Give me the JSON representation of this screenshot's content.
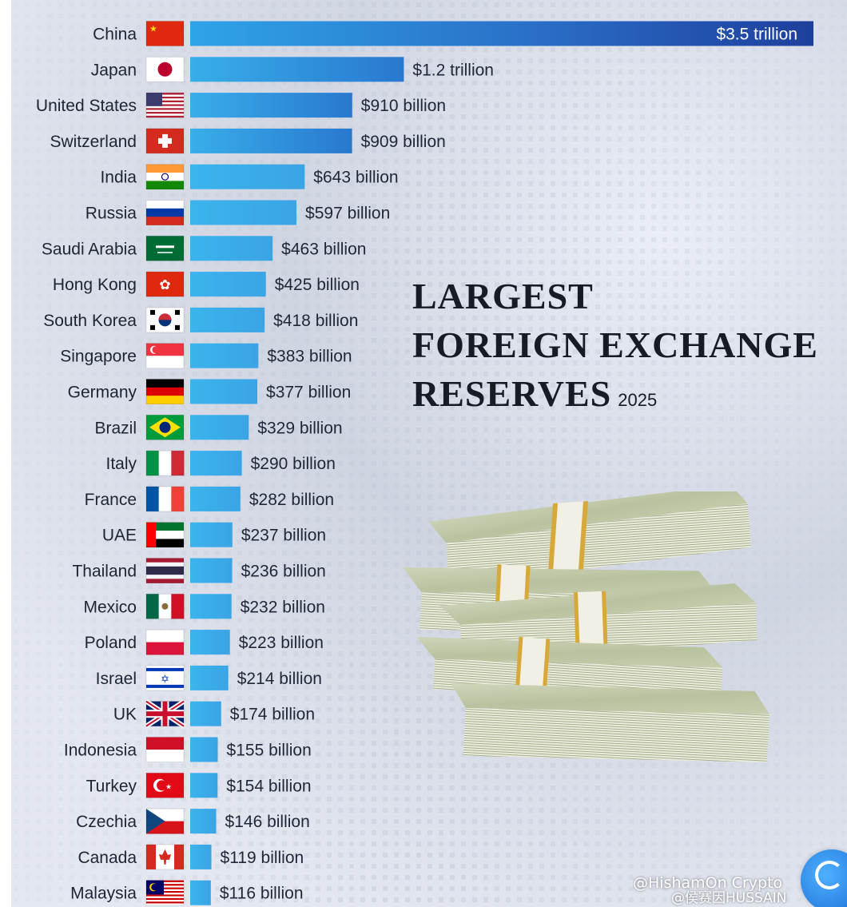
{
  "title": {
    "line1": "LARGEST",
    "line2": "FOREIGN EXCHANGE",
    "line3": "RESERVES",
    "year": "2025"
  },
  "watermark": {
    "line1": "@HishamOn Crypto",
    "line2": "@侯赛因HUSSAIN"
  },
  "colors": {
    "bar_top": "#1e4fae",
    "bar_mid": "#2a8fe0",
    "bar_light": "#3ab2ea",
    "text": "#1d2433"
  },
  "chart_data": {
    "type": "bar",
    "orientation": "horizontal",
    "title": "LARGEST FOREIGN EXCHANGE RESERVES 2025",
    "unit": "billion USD",
    "categories": [
      "China",
      "Japan",
      "United States",
      "Switzerland",
      "India",
      "Russia",
      "Saudi Arabia",
      "Hong Kong",
      "South Korea",
      "Singapore",
      "Germany",
      "Brazil",
      "Italy",
      "France",
      "UAE",
      "Thailand",
      "Mexico",
      "Poland",
      "Israel",
      "UK",
      "Indonesia",
      "Turkey",
      "Czechia",
      "Canada",
      "Malaysia"
    ],
    "values": [
      3500,
      1200,
      910,
      909,
      643,
      597,
      463,
      425,
      418,
      383,
      377,
      329,
      290,
      282,
      237,
      236,
      232,
      223,
      214,
      174,
      155,
      154,
      146,
      119,
      116
    ],
    "value_labels": [
      "$3.5 trillion",
      "$1.2 trillion",
      "$910 billion",
      "$909 billion",
      "$643 billion",
      "$597 billion",
      "$463 billion",
      "$425 billion",
      "$418 billion",
      "$383 billion",
      "$377 billion",
      "$329 billion",
      "$290 billion",
      "$282 billion",
      "$237 billion",
      "$236 billion",
      "$232 billion",
      "$223 billion",
      "$214 billion",
      "$174 billion",
      "$155 billion",
      "$154 billion",
      "$146 billion",
      "$119 billion",
      "$116 billion"
    ],
    "flags": [
      "flag-china-icon",
      "flag-japan-icon",
      "flag-united-states-icon",
      "flag-switzerland-icon",
      "flag-india-icon",
      "flag-russia-icon",
      "flag-saudi-arabia-icon",
      "flag-hong-kong-icon",
      "flag-south-korea-icon",
      "flag-singapore-icon",
      "flag-germany-icon",
      "flag-brazil-icon",
      "flag-italy-icon",
      "flag-france-icon",
      "flag-uae-icon",
      "flag-thailand-icon",
      "flag-mexico-icon",
      "flag-poland-icon",
      "flag-israel-icon",
      "flag-uk-icon",
      "flag-indonesia-icon",
      "flag-turkey-icon",
      "flag-czechia-icon",
      "flag-canada-icon",
      "flag-malaysia-icon"
    ],
    "xlim": [
      0,
      3500
    ],
    "grid": false,
    "legend": "none"
  }
}
